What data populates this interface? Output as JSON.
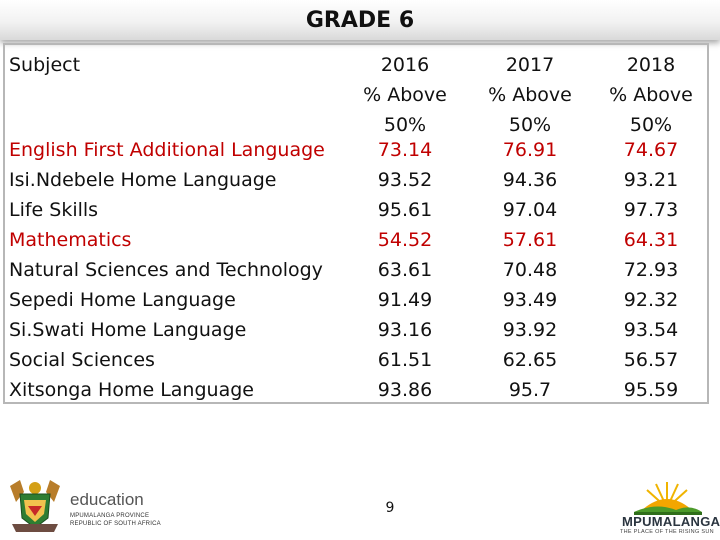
{
  "title": "GRADE 6",
  "table": {
    "subject_header": "Subject",
    "subjects": [
      {
        "name": "English First Additional Language",
        "v2016": "73.14",
        "v2017": "76.91",
        "v2018": "74.67",
        "highlight": true
      },
      {
        "name": "Isi.Ndebele Home Language",
        "v2016": "93.52",
        "v2017": "94.36",
        "v2018": "93.21",
        "highlight": false
      },
      {
        "name": "Life Skills",
        "v2016": "95.61",
        "v2017": "97.04",
        "v2018": "97.73",
        "highlight": false
      },
      {
        "name": "Mathematics",
        "v2016": "54.52",
        "v2017": "57.61",
        "v2018": "64.31",
        "highlight": true
      },
      {
        "name": "Natural Sciences and Technology",
        "v2016": "63.61",
        "v2017": "70.48",
        "v2018": "72.93",
        "highlight": false
      },
      {
        "name": "Sepedi Home Language",
        "v2016": "91.49",
        "v2017": "93.49",
        "v2018": "92.32",
        "highlight": false
      },
      {
        "name": "Si.Swati Home Language",
        "v2016": "93.16",
        "v2017": "93.92",
        "v2018": "93.54",
        "highlight": false
      },
      {
        "name": "Social Sciences",
        "v2016": "61.51",
        "v2017": "62.65",
        "v2018": "56.57",
        "highlight": false
      },
      {
        "name": "Xitsonga Home Language",
        "v2016": "93.86",
        "v2017": "95.7",
        "v2018": "95.59",
        "highlight": false
      }
    ],
    "columns": [
      {
        "year": "2016",
        "line2": "% Above",
        "line3": "50%"
      },
      {
        "year": "2017",
        "line2": "% Above",
        "line3": "50%"
      },
      {
        "year": "2018",
        "line2": "% Above",
        "line3": "50%"
      }
    ]
  },
  "colors": {
    "highlight": "#c00000",
    "text": "#111111"
  },
  "page_number": "9",
  "logos": {
    "left": {
      "word": "education",
      "line1": "MPUMALANGA PROVINCE",
      "line2": "REPUBLIC OF SOUTH AFRICA"
    },
    "right": {
      "word": "MPUMALANGA",
      "tagline": "THE PLACE OF THE RISING SUN"
    }
  }
}
